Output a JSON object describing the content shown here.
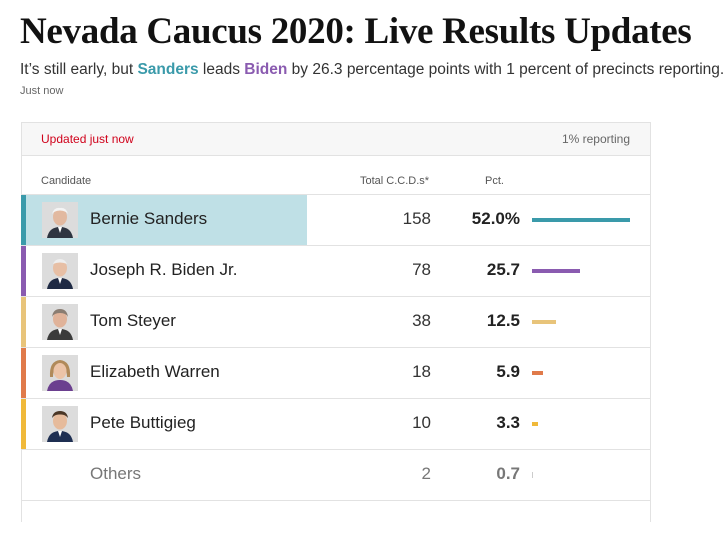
{
  "headline": "Nevada Caucus 2020: Live Results Updates",
  "summary": {
    "prefix": "It’s still early, but ",
    "leader": "Sanders",
    "middle": " leads ",
    "runner_up": "Biden",
    "suffix": " by 26.3 percentage points with 1 percent of precincts reporting."
  },
  "timestamp": "Just now",
  "results": {
    "updated": "Updated just now",
    "reporting": "1% reporting",
    "headers": {
      "candidate": "Candidate",
      "total": "Total C.C.D.s*",
      "pct": "Pct."
    },
    "colors": {
      "sanders": "#3a9aaa",
      "biden": "#8a5bb0",
      "steyer": "#e8c47a",
      "warren": "#e07a4a",
      "buttigieg": "#f0b93a",
      "highlight": "#bfe0e6"
    },
    "candidates": [
      {
        "name": "Bernie Sanders",
        "total": "158",
        "pct": "52.0%",
        "share": 52.0,
        "color": "#3a9aaa",
        "avatar": "sanders-avatar",
        "leader": true
      },
      {
        "name": "Joseph R. Biden Jr.",
        "total": "78",
        "pct": "25.7",
        "share": 25.7,
        "color": "#8a5bb0",
        "avatar": "biden-avatar"
      },
      {
        "name": "Tom Steyer",
        "total": "38",
        "pct": "12.5",
        "share": 12.5,
        "color": "#e8c47a",
        "avatar": "steyer-avatar"
      },
      {
        "name": "Elizabeth Warren",
        "total": "18",
        "pct": "5.9",
        "share": 5.9,
        "color": "#e07a4a",
        "avatar": "warren-avatar"
      },
      {
        "name": "Pete Buttigieg",
        "total": "10",
        "pct": "3.3",
        "share": 3.3,
        "color": "#f0b93a",
        "avatar": "buttigieg-avatar"
      }
    ],
    "others": {
      "name": "Others",
      "total": "2",
      "pct": "0.7",
      "share": 0.7
    }
  }
}
